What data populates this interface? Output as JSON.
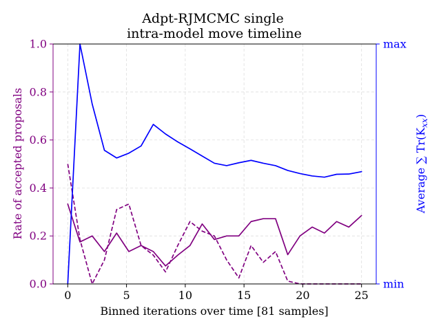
{
  "chart_data": {
    "type": "line",
    "title_line1": "Adpt-RJMCMC single",
    "title_line2": "intra-model move timeline",
    "xlabel": "Binned iterations over time [81 samples]",
    "ylabel_left": "Rate of accepted proposals",
    "ylabel_right": "Average ∑ Tr(K",
    "ylabel_right_sub": "xx",
    "ylabel_right_close": ")",
    "xlim": [
      -1.25,
      26.25
    ],
    "ylim_left": [
      0,
      1
    ],
    "ylim_right": [
      0,
      1
    ],
    "x_ticks": [
      0,
      5,
      10,
      15,
      20,
      25
    ],
    "y_ticks_left": [
      0.0,
      0.2,
      0.4,
      0.6,
      0.8,
      1.0
    ],
    "y_tick_labels_left": [
      "0.0",
      "0.2",
      "0.4",
      "0.6",
      "0.8",
      "1.0"
    ],
    "y_ticks_right": [
      0,
      1
    ],
    "y_tick_labels_right": [
      "min",
      "max"
    ],
    "grid": true,
    "colors": {
      "left_axis": "#800080",
      "right_axis": "#0000ff",
      "grid": "#dddddd"
    },
    "x": [
      0,
      1.04,
      2.08,
      3.12,
      4.16,
      5.2,
      6.24,
      7.28,
      8.32,
      9.36,
      10.4,
      11.44,
      12.48,
      13.52,
      14.56,
      15.6,
      16.64,
      17.68,
      18.72,
      19.76,
      20.8,
      21.84,
      22.88,
      23.92,
      25.0
    ],
    "series": [
      {
        "axis": "left",
        "style": "solid",
        "color": "#800080",
        "values": [
          0.333,
          0.175,
          0.2,
          0.135,
          0.212,
          0.135,
          0.16,
          0.135,
          0.075,
          0.12,
          0.16,
          0.25,
          0.185,
          0.2,
          0.2,
          0.26,
          0.272,
          0.272,
          0.122,
          0.2,
          0.237,
          0.212,
          0.26,
          0.237,
          0.285
        ]
      },
      {
        "axis": "left",
        "style": "dashed",
        "color": "#800080",
        "values": [
          0.5,
          0.185,
          0.0,
          0.1,
          0.31,
          0.333,
          0.16,
          0.12,
          0.05,
          0.16,
          0.26,
          0.22,
          0.2,
          0.1,
          0.025,
          0.16,
          0.09,
          0.135,
          0.012,
          0.0,
          0.0,
          0.0,
          0.0,
          0.0,
          0.0
        ]
      },
      {
        "axis": "right",
        "style": "solid",
        "color": "#0000ff",
        "values": [
          0.0,
          1.0,
          0.75,
          0.557,
          0.525,
          0.545,
          0.575,
          0.665,
          0.625,
          0.592,
          0.563,
          0.533,
          0.503,
          0.493,
          0.505,
          0.515,
          0.503,
          0.493,
          0.473,
          0.46,
          0.45,
          0.445,
          0.457,
          0.458,
          0.468
        ]
      }
    ]
  }
}
